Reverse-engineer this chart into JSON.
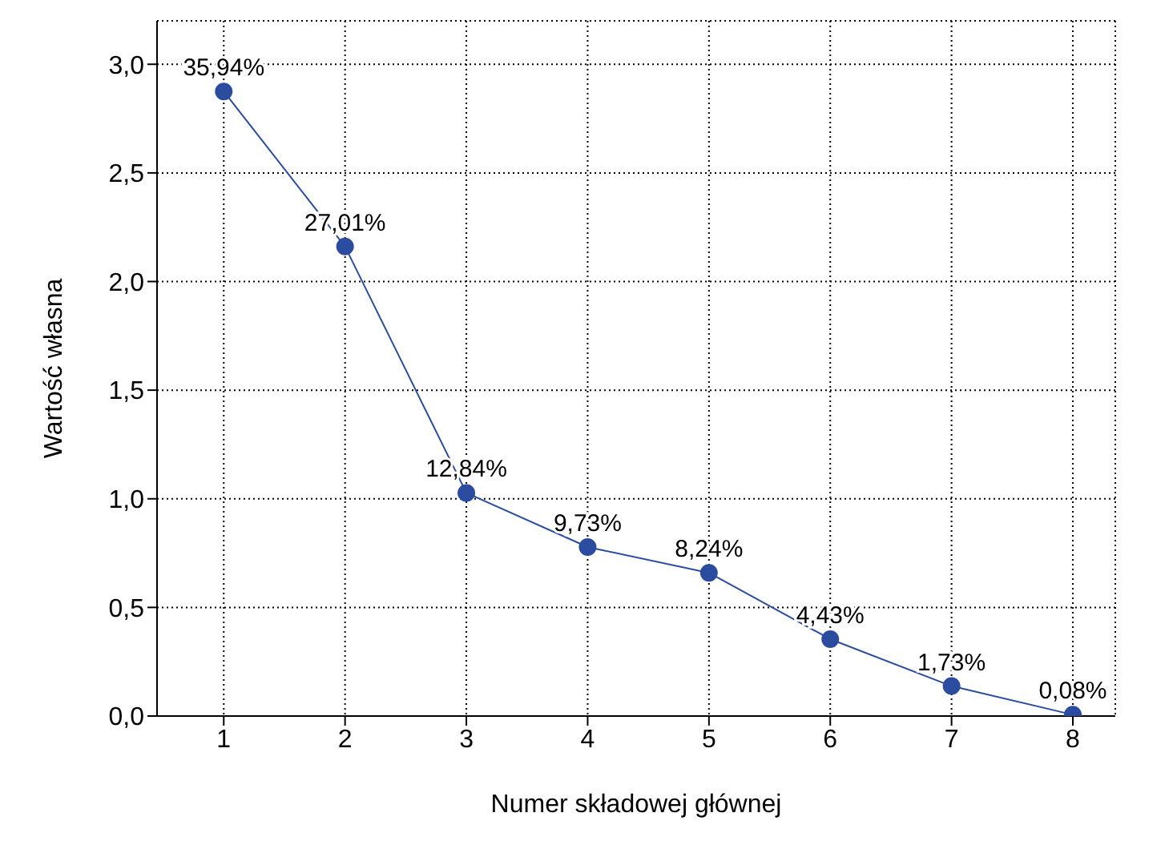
{
  "chart_data": {
    "type": "line",
    "xlabel": "Numer składowej głównej",
    "ylabel": "Wartość własna",
    "x": [
      1,
      2,
      3,
      4,
      5,
      6,
      7,
      8
    ],
    "series": [
      {
        "color": "#2b4c9f",
        "values": [
          2.875,
          2.161,
          1.027,
          0.778,
          0.659,
          0.354,
          0.138,
          0.006
        ]
      }
    ],
    "annotations": [
      {
        "text": "35,94%",
        "x": 1,
        "y": 2.875
      },
      {
        "text": "27,01%",
        "x": 2,
        "y": 2.161
      },
      {
        "text": "12,84%",
        "x": 3,
        "y": 1.027
      },
      {
        "text": "9,73%",
        "x": 4,
        "y": 0.778
      },
      {
        "text": "8,24%",
        "x": 5,
        "y": 0.659
      },
      {
        "text": "4,43%",
        "x": 6,
        "y": 0.354
      },
      {
        "text": "1,73%",
        "x": 7,
        "y": 0.138
      },
      {
        "text": "0,08%",
        "x": 8,
        "y": 0.006
      }
    ],
    "xlim": [
      0.45,
      8.35
    ],
    "xticks": [
      1,
      2,
      3,
      4,
      5,
      6,
      7,
      8
    ],
    "ylim": [
      0,
      3.2
    ],
    "yticks": [
      {
        "value": 0,
        "label": "0,0"
      },
      {
        "value": 0.5,
        "label": "0,5"
      },
      {
        "value": 1,
        "label": "1,0"
      },
      {
        "value": 1.5,
        "label": "1,5"
      },
      {
        "value": 2,
        "label": "2,0"
      },
      {
        "value": 2.5,
        "label": "2,5"
      },
      {
        "value": 3,
        "label": "3,0"
      }
    ],
    "grid": true,
    "marker": "circle",
    "line_style": "solid"
  }
}
